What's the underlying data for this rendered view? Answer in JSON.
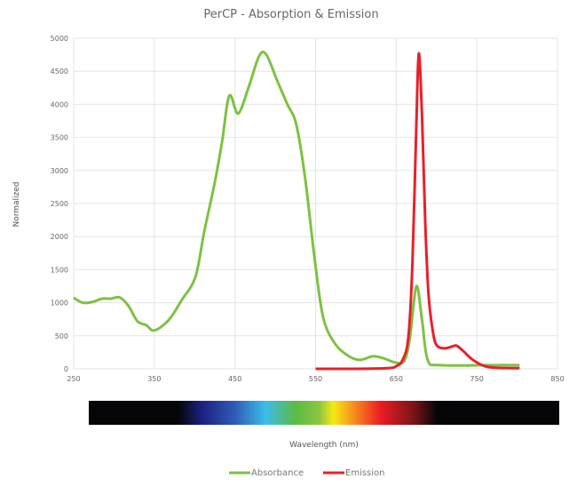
{
  "chart_data": {
    "type": "line",
    "title": "PerCP - Absorption & Emission",
    "xlabel": "Wavelength (nm)",
    "ylabel": "Normalized",
    "xlim": [
      250,
      850
    ],
    "ylim": [
      0,
      5000
    ],
    "xticks": [
      250,
      350,
      450,
      550,
      650,
      750,
      850
    ],
    "yticks": [
      0,
      500,
      1000,
      1500,
      2000,
      2500,
      3000,
      3500,
      4000,
      4500,
      5000
    ],
    "grid": true,
    "legend_position": "bottom",
    "spectrum_bar": true,
    "series": [
      {
        "name": "Absorbance",
        "color": "#7dc242",
        "x": [
          250,
          261,
          273,
          285,
          296,
          307,
          318,
          329,
          340,
          350,
          368,
          384,
          401,
          412,
          425,
          434,
          443,
          454,
          467,
          480,
          489,
          502,
          515,
          526,
          537,
          548,
          559,
          573,
          590,
          605,
          621,
          634,
          649,
          660,
          667,
          675,
          682,
          689,
          704,
          764,
          803
        ],
        "y": [
          1075,
          1000,
          1010,
          1060,
          1060,
          1080,
          950,
          720,
          660,
          580,
          740,
          1040,
          1390,
          2080,
          2820,
          3430,
          4130,
          3860,
          4260,
          4730,
          4750,
          4370,
          4000,
          3700,
          2890,
          1750,
          800,
          400,
          200,
          135,
          190,
          160,
          95,
          120,
          470,
          1250,
          740,
          135,
          55,
          55,
          55
        ]
      },
      {
        "name": "Emission",
        "color": "#e8202a",
        "x": [
          550,
          600,
          640,
          650,
          658,
          665,
          670,
          675,
          678,
          682,
          686,
          690,
          695,
          700,
          710,
          720,
          725,
          733,
          745,
          760,
          775,
          803
        ],
        "y": [
          0,
          0,
          10,
          40,
          135,
          470,
          1550,
          3700,
          4770,
          3830,
          2220,
          1140,
          600,
          360,
          310,
          340,
          350,
          270,
          135,
          40,
          15,
          10
        ]
      }
    ]
  }
}
